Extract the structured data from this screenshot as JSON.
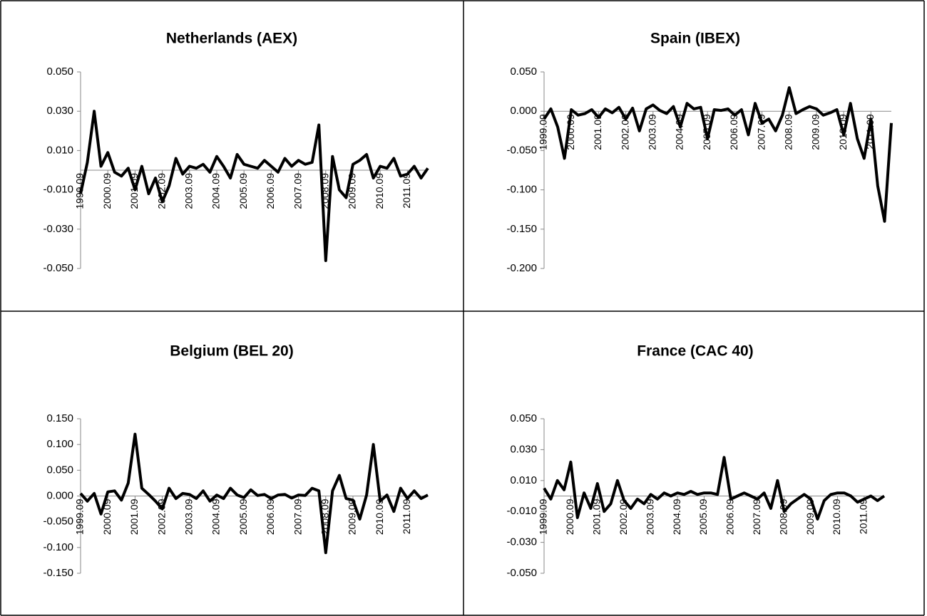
{
  "chart_data": [
    {
      "type": "line",
      "title": "Netherlands (AEX)",
      "categories": [
        "1999.09",
        null,
        null,
        null,
        "2000.09",
        null,
        null,
        null,
        "2001.09",
        null,
        null,
        null,
        "2002.09",
        null,
        null,
        null,
        "2003.09",
        null,
        null,
        null,
        "2004.09",
        null,
        null,
        null,
        "2005.09",
        null,
        null,
        null,
        "2006.09",
        null,
        null,
        null,
        "2007.09",
        null,
        null,
        null,
        "2008.09",
        null,
        null,
        null,
        "2009.09",
        null,
        null,
        null,
        "2010.09",
        null,
        null,
        null,
        "2011.09",
        null,
        null,
        null
      ],
      "series": [
        {
          "color": "#000000",
          "values": [
            -0.012,
            0.004,
            0.03,
            0.002,
            0.009,
            -0.001,
            -0.003,
            0.001,
            -0.01,
            0.002,
            -0.012,
            -0.004,
            -0.016,
            -0.008,
            0.006,
            -0.002,
            0.002,
            0.001,
            0.003,
            -0.001,
            0.007,
            0.002,
            -0.004,
            0.008,
            0.003,
            0.002,
            0.001,
            0.005,
            0.002,
            -0.001,
            0.006,
            0.002,
            0.005,
            0.003,
            0.004,
            0.023,
            -0.046,
            0.007,
            -0.01,
            -0.014,
            0.003,
            0.005,
            0.008,
            -0.004,
            0.002,
            0.001,
            0.006,
            -0.003,
            -0.002,
            0.002,
            -0.004,
            0.001
          ]
        }
      ],
      "ylim": [
        -0.05,
        0.05
      ],
      "yticks": [
        {
          "value": 0.05,
          "label": "0.050"
        },
        {
          "value": 0.03,
          "label": "0.030"
        },
        {
          "value": 0.01,
          "label": "0.010"
        },
        {
          "value": -0.01,
          "label": "-0.010"
        },
        {
          "value": -0.03,
          "label": "-0.030"
        },
        {
          "value": -0.05,
          "label": "-0.050"
        }
      ]
    },
    {
      "type": "line",
      "title": "Spain (IBEX)",
      "categories": [
        "1999.09",
        null,
        null,
        null,
        "2000.09",
        null,
        null,
        null,
        "2001.09",
        null,
        null,
        null,
        "2002.09",
        null,
        null,
        null,
        "2003.09",
        null,
        null,
        null,
        "2004.09",
        null,
        null,
        null,
        "2005.09",
        null,
        null,
        null,
        "2006.09",
        null,
        null,
        null,
        "2007.09",
        null,
        null,
        null,
        "2008.09",
        null,
        null,
        null,
        "2009.09",
        null,
        null,
        null,
        "2010.09",
        null,
        null,
        null,
        "2011.09",
        null,
        null,
        null
      ],
      "series": [
        {
          "color": "#000000",
          "values": [
            -0.01,
            0.003,
            -0.02,
            -0.06,
            0.002,
            -0.005,
            -0.003,
            0.002,
            -0.008,
            0.003,
            -0.002,
            0.005,
            -0.01,
            0.004,
            -0.025,
            0.003,
            0.008,
            0.001,
            -0.003,
            0.006,
            -0.02,
            0.01,
            0.003,
            0.005,
            -0.035,
            0.002,
            0.001,
            0.003,
            -0.005,
            0.002,
            -0.03,
            0.01,
            -0.015,
            -0.01,
            -0.025,
            -0.005,
            0.03,
            -0.003,
            0.002,
            0.006,
            0.003,
            -0.005,
            -0.002,
            0.002,
            -0.03,
            0.01,
            -0.035,
            -0.06,
            -0.01,
            -0.095,
            -0.14,
            -0.015
          ]
        }
      ],
      "ylim": [
        -0.2,
        0.05
      ],
      "yticks": [
        {
          "value": 0.05,
          "label": "0.050"
        },
        {
          "value": 0,
          "label": "0.000"
        },
        {
          "value": -0.05,
          "label": "-0.050"
        },
        {
          "value": -0.1,
          "label": "-0.100"
        },
        {
          "value": -0.15,
          "label": "-0.150"
        },
        {
          "value": -0.2,
          "label": "-0.200"
        }
      ]
    },
    {
      "type": "line",
      "title": "Belgium (BEL 20)",
      "categories": [
        "1999.09",
        null,
        null,
        null,
        "2000.09",
        null,
        null,
        null,
        "2001.09",
        null,
        null,
        null,
        "2002.09",
        null,
        null,
        null,
        "2003.09",
        null,
        null,
        null,
        "2004.09",
        null,
        null,
        null,
        "2005.09",
        null,
        null,
        null,
        "2006.09",
        null,
        null,
        null,
        "2007.09",
        null,
        null,
        null,
        "2008.09",
        null,
        null,
        null,
        "2009.09",
        null,
        null,
        null,
        "2010.09",
        null,
        null,
        null,
        "2011.09",
        null,
        null,
        null
      ],
      "series": [
        {
          "color": "#000000",
          "values": [
            0.005,
            -0.01,
            0.005,
            -0.035,
            0.008,
            0.01,
            -0.008,
            0.025,
            0.12,
            0.015,
            0.003,
            -0.01,
            -0.025,
            0.015,
            -0.005,
            0.005,
            0.003,
            -0.005,
            0.01,
            -0.01,
            0.002,
            -0.005,
            0.015,
            0.002,
            -0.003,
            0.012,
            0.001,
            0.003,
            -0.005,
            0.002,
            0.003,
            -0.004,
            0.002,
            0.001,
            0.015,
            0.01,
            -0.11,
            0.01,
            0.04,
            -0.005,
            -0.008,
            -0.045,
            0.002,
            0.1,
            -0.01,
            0.002,
            -0.03,
            0.015,
            -0.005,
            0.01,
            -0.005,
            0.002
          ]
        }
      ],
      "ylim": [
        -0.15,
        0.15
      ],
      "yticks": [
        {
          "value": 0.15,
          "label": "0.150"
        },
        {
          "value": 0.1,
          "label": "0.100"
        },
        {
          "value": 0.05,
          "label": "0.050"
        },
        {
          "value": 0,
          "label": "0.000"
        },
        {
          "value": -0.05,
          "label": "-0.050"
        },
        {
          "value": -0.1,
          "label": "-0.100"
        },
        {
          "value": -0.15,
          "label": "-0.150"
        }
      ]
    },
    {
      "type": "line",
      "title": "France (CAC 40)",
      "categories": [
        "1999.09",
        null,
        null,
        null,
        "2000.09",
        null,
        null,
        null,
        "2001.09",
        null,
        null,
        null,
        "2002.09",
        null,
        null,
        null,
        "2003.09",
        null,
        null,
        null,
        "2004.09",
        null,
        null,
        null,
        "2005.09",
        null,
        null,
        null,
        "2006.09",
        null,
        null,
        null,
        "2007.09",
        null,
        null,
        null,
        "2008.09",
        null,
        null,
        null,
        "2009.09",
        null,
        null,
        null,
        "2010.09",
        null,
        null,
        null,
        "2011.09",
        null,
        null,
        null
      ],
      "series": [
        {
          "color": "#000000",
          "values": [
            0.005,
            -0.002,
            0.01,
            0.004,
            0.022,
            -0.014,
            0.002,
            -0.008,
            0.008,
            -0.01,
            -0.005,
            0.01,
            -0.003,
            -0.008,
            -0.002,
            -0.005,
            0.001,
            -0.002,
            0.002,
            0.0,
            0.002,
            0.001,
            0.003,
            0.001,
            0.002,
            0.002,
            0.001,
            0.025,
            -0.002,
            0.0,
            0.002,
            0.0,
            -0.002,
            0.002,
            -0.008,
            0.01,
            -0.01,
            -0.005,
            -0.002,
            0.001,
            -0.002,
            -0.015,
            -0.003,
            0.001,
            0.002,
            0.002,
            0.0,
            -0.004,
            -0.002,
            0.0,
            -0.003,
            0.0
          ]
        }
      ],
      "ylim": [
        -0.05,
        0.05
      ],
      "yticks": [
        {
          "value": 0.05,
          "label": "0.050"
        },
        {
          "value": 0.03,
          "label": "0.030"
        },
        {
          "value": 0.01,
          "label": "0.010"
        },
        {
          "value": -0.01,
          "label": "-0.010"
        },
        {
          "value": -0.03,
          "label": "-0.030"
        },
        {
          "value": -0.05,
          "label": "-0.050"
        }
      ]
    }
  ]
}
